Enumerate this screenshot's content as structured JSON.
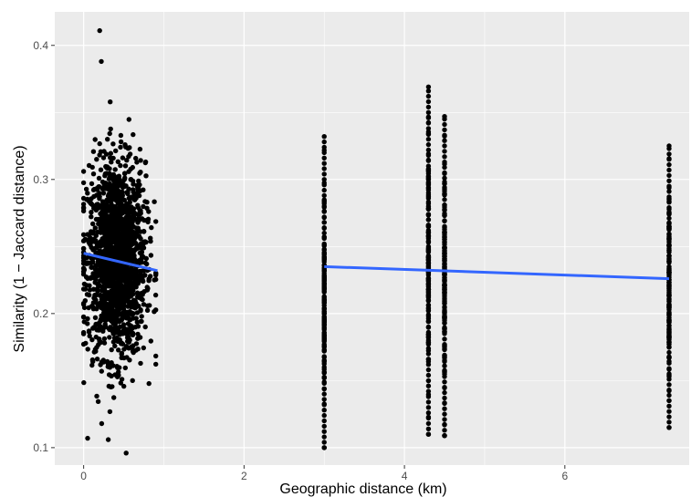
{
  "chart_data": {
    "type": "scatter",
    "title": "",
    "xlabel": "Geographic distance (km)",
    "ylabel": "Similarity (1 − Jaccard distance)",
    "xlim": [
      -0.36,
      7.55
    ],
    "ylim": [
      0.087,
      0.425
    ],
    "x_ticks": [
      0,
      2,
      4,
      6
    ],
    "x_tick_labels": [
      "0",
      "2",
      "4",
      "6"
    ],
    "y_ticks": [
      0.1,
      0.2,
      0.3,
      0.4
    ],
    "y_tick_labels": [
      "0.1",
      "0.2",
      "0.3",
      "0.4"
    ],
    "grid": true,
    "legend": "none",
    "point_color": "#000000",
    "line_color": "#3366ff",
    "panel_background": "#ebebeb",
    "clusters": [
      {
        "x_range": [
          0.0,
          0.9
        ],
        "y_range": [
          0.096,
          0.411
        ],
        "center_y": 0.24,
        "description_note": "dense cloud of pairwise points"
      },
      {
        "x": 3.0,
        "y_range": [
          0.1,
          0.332
        ]
      },
      {
        "x": 4.3,
        "y_range": [
          0.11,
          0.369
        ]
      },
      {
        "x": 4.5,
        "y_range": [
          0.109,
          0.347
        ]
      },
      {
        "x": 7.3,
        "y_range": [
          0.115,
          0.325
        ]
      }
    ],
    "series": [
      {
        "type": "line",
        "segments": [
          {
            "x": [
              0.0,
              0.92
            ],
            "y": [
              0.245,
              0.232
            ]
          },
          {
            "x": [
              3.0,
              7.3
            ],
            "y": [
              0.235,
              0.226
            ]
          }
        ]
      }
    ]
  }
}
